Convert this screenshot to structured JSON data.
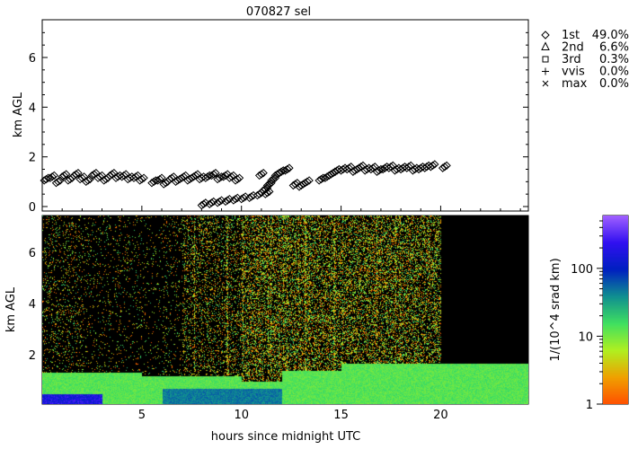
{
  "chart_data": [
    {
      "type": "scatter",
      "title": "070827 sel",
      "ylabel": "km AGL",
      "xlim": [
        0,
        24.4
      ],
      "ylim": [
        0,
        7.5
      ],
      "yticks": [
        0,
        2,
        4,
        6
      ],
      "legend_placement": "right",
      "legend": [
        {
          "symbol": "diamond",
          "label": "1st",
          "value": "49.0%"
        },
        {
          "symbol": "triangle",
          "label": "2nd",
          "value": "6.6%"
        },
        {
          "symbol": "square",
          "label": "3rd",
          "value": "0.3%"
        },
        {
          "symbol": "plus",
          "label": "vvis",
          "value": "0.0%"
        },
        {
          "symbol": "cross",
          "label": "max",
          "value": "0.0%"
        }
      ],
      "series": [
        {
          "symbol": "diamond",
          "points": [
            [
              0.2,
              1.1
            ],
            [
              0.5,
              1.2
            ],
            [
              0.8,
              1.0
            ],
            [
              1.1,
              1.25
            ],
            [
              1.4,
              1.1
            ],
            [
              1.7,
              1.3
            ],
            [
              2.0,
              1.15
            ],
            [
              2.3,
              1.05
            ],
            [
              2.6,
              1.3
            ],
            [
              2.9,
              1.2
            ],
            [
              3.2,
              1.1
            ],
            [
              3.5,
              1.3
            ],
            [
              3.8,
              1.2
            ],
            [
              4.1,
              1.25
            ],
            [
              4.4,
              1.15
            ],
            [
              4.7,
              1.2
            ],
            [
              5.0,
              1.1
            ],
            [
              5.6,
              1.0
            ],
            [
              5.9,
              1.1
            ],
            [
              6.2,
              0.95
            ],
            [
              6.5,
              1.15
            ],
            [
              6.8,
              1.05
            ],
            [
              7.1,
              1.2
            ],
            [
              7.4,
              1.1
            ],
            [
              7.7,
              1.25
            ],
            [
              8.0,
              1.15
            ],
            [
              8.3,
              1.2
            ],
            [
              8.6,
              1.3
            ],
            [
              8.9,
              1.15
            ],
            [
              9.2,
              1.25
            ],
            [
              9.5,
              1.2
            ],
            [
              9.8,
              1.1
            ],
            [
              8.1,
              0.1
            ],
            [
              8.5,
              0.15
            ],
            [
              8.9,
              0.2
            ],
            [
              9.3,
              0.25
            ],
            [
              9.7,
              0.3
            ],
            [
              10.1,
              0.35
            ],
            [
              10.5,
              0.4
            ],
            [
              10.9,
              0.5
            ],
            [
              11.2,
              0.7
            ],
            [
              11.4,
              0.9
            ],
            [
              11.6,
              1.1
            ],
            [
              11.8,
              1.3
            ],
            [
              12.0,
              1.4
            ],
            [
              12.3,
              1.5
            ],
            [
              11.0,
              1.3
            ],
            [
              11.3,
              0.55
            ],
            [
              12.7,
              0.9
            ],
            [
              13.0,
              0.85
            ],
            [
              13.3,
              1.0
            ],
            [
              14.0,
              1.1
            ],
            [
              14.3,
              1.2
            ],
            [
              14.6,
              1.35
            ],
            [
              14.8,
              1.45
            ],
            [
              15.1,
              1.5
            ],
            [
              15.4,
              1.55
            ],
            [
              15.7,
              1.45
            ],
            [
              16.0,
              1.6
            ],
            [
              16.3,
              1.5
            ],
            [
              16.6,
              1.55
            ],
            [
              16.9,
              1.45
            ],
            [
              17.2,
              1.55
            ],
            [
              17.5,
              1.6
            ],
            [
              17.8,
              1.5
            ],
            [
              18.1,
              1.55
            ],
            [
              18.4,
              1.6
            ],
            [
              18.7,
              1.5
            ],
            [
              19.0,
              1.55
            ],
            [
              19.3,
              1.6
            ],
            [
              19.6,
              1.65
            ],
            [
              20.2,
              1.6
            ]
          ]
        }
      ]
    },
    {
      "type": "heatmap",
      "ylabel": "km AGL",
      "xlabel": "hours since midnight UTC",
      "xlim": [
        0,
        24.4
      ],
      "ylim": [
        0,
        7.5
      ],
      "xticks": [
        5,
        10,
        15,
        20
      ],
      "yticks": [
        2,
        4,
        6
      ],
      "colorbar": {
        "label": "1/(10^4 srad km)",
        "scale": "log",
        "range": [
          1,
          600
        ],
        "ticks": [
          "1",
          "10",
          "100"
        ],
        "colors": [
          "#ff5000",
          "#f0a000",
          "#b0f020",
          "#40e060",
          "#109090",
          "#0020c0",
          "#3010f0",
          "#a060ff"
        ]
      }
    }
  ]
}
